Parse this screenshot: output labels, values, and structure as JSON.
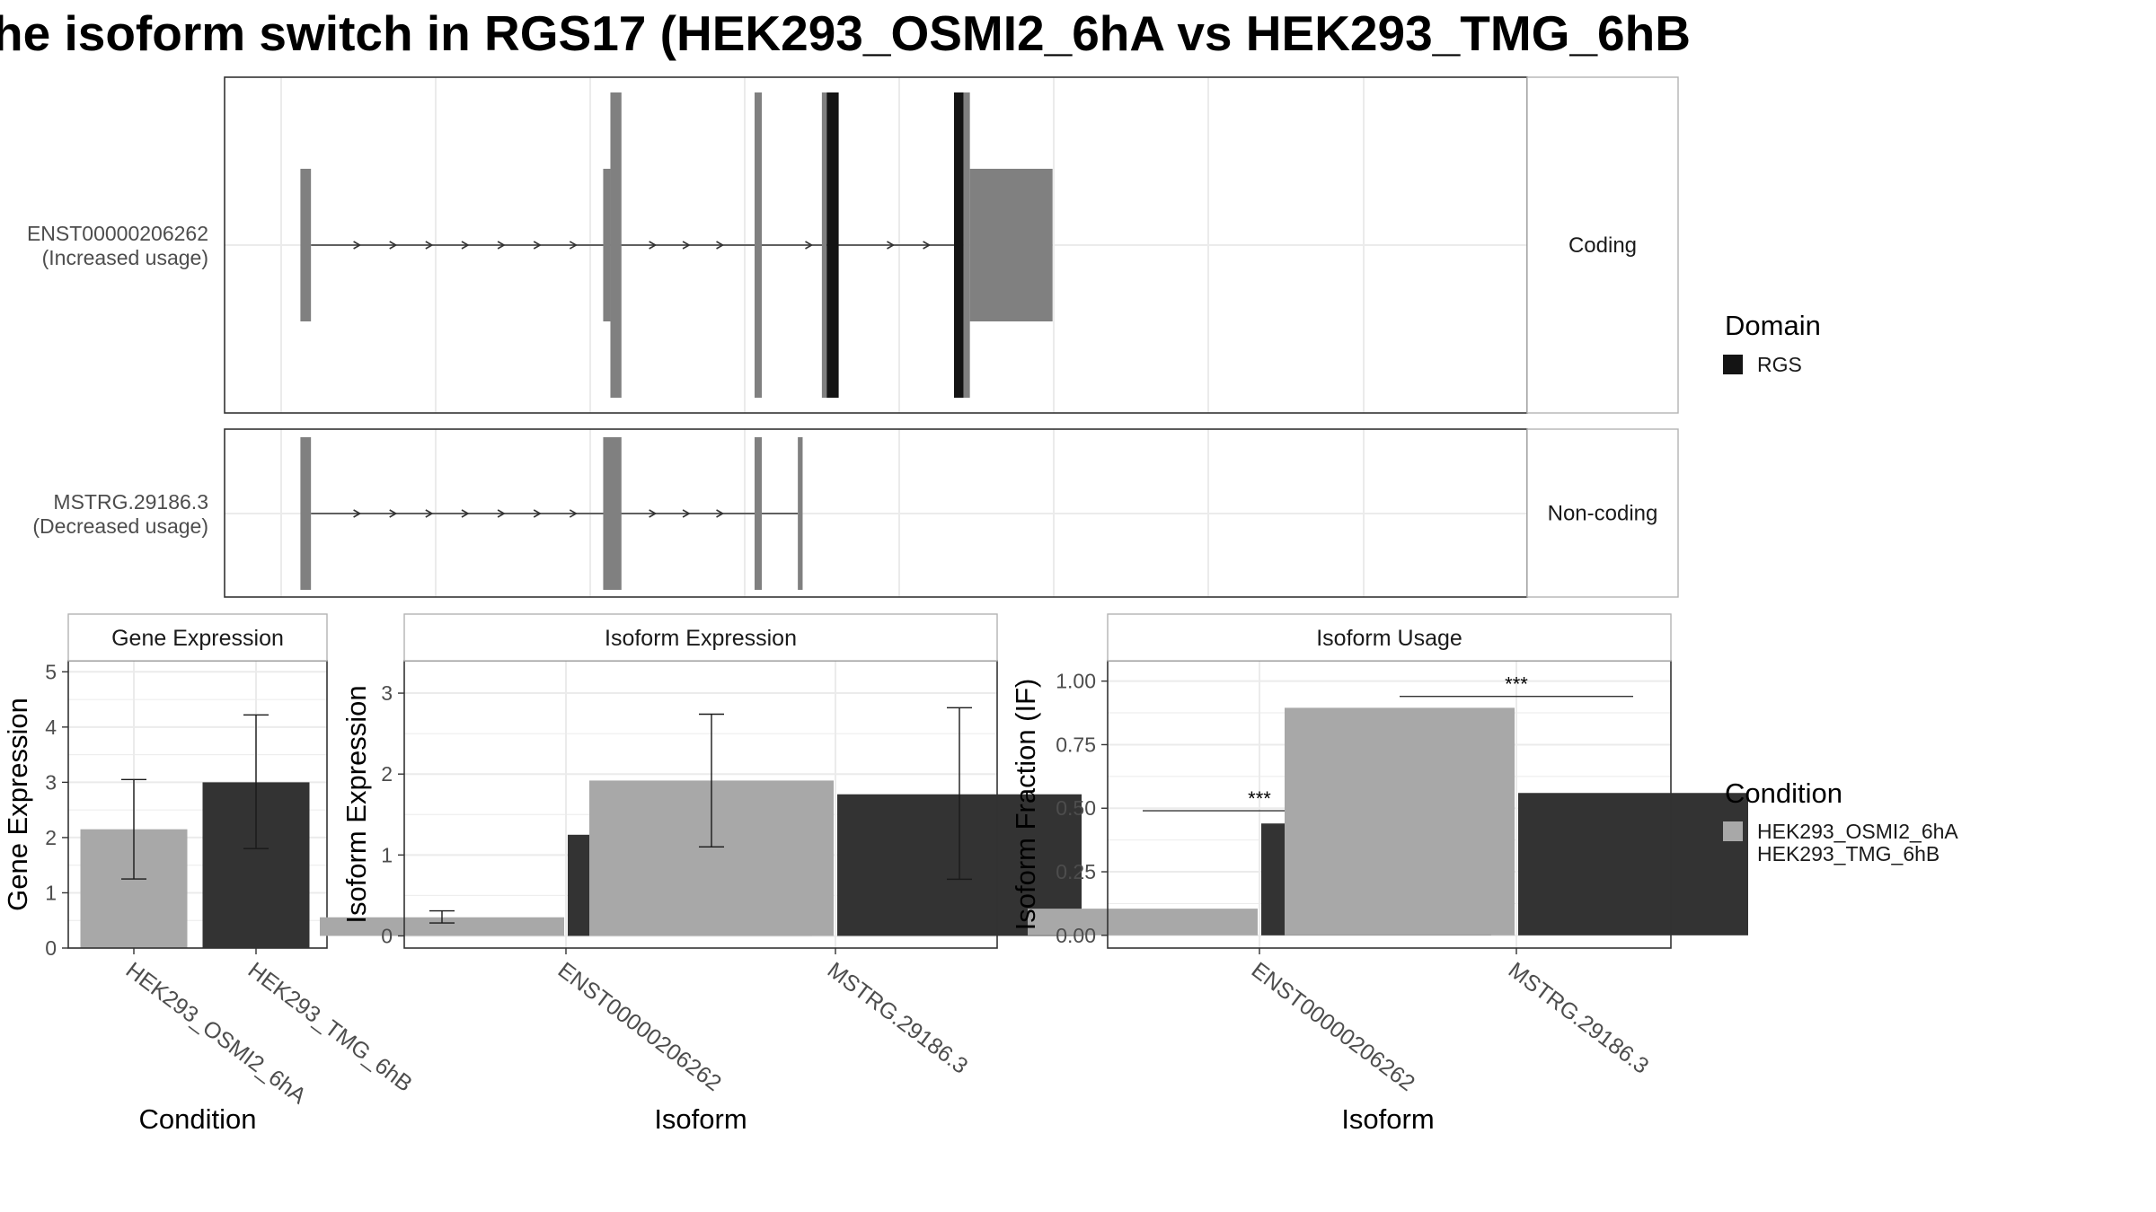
{
  "title": "he isoform switch in RGS17 (HEK293_OSMI2_6hA vs HEK293_TMG_6hB",
  "colors": {
    "exon": "#808080",
    "domain": "#141414",
    "cond_a": "#a8a8a8",
    "cond_b": "#333333",
    "panel_border": "#333333",
    "strip_border": "#b3b3b3",
    "grid": "#ebebeb"
  },
  "transcripts": {
    "coding_strip": "Coding",
    "noncoding_strip": "Non-coding",
    "isoforms": [
      {
        "id": "ENST00000206262",
        "usage": "(Increased usage)",
        "exons": [
          {
            "start": 0.4,
            "end": 0.62,
            "kind": "utr"
          },
          {
            "start": 6.7,
            "end": 6.85,
            "kind": "utr"
          },
          {
            "start": 6.85,
            "end": 7.08,
            "kind": "cds"
          },
          {
            "start": 9.85,
            "end": 10.0,
            "kind": "cds"
          },
          {
            "start": 11.25,
            "end": 11.35,
            "kind": "cds"
          },
          {
            "start": 11.35,
            "end": 11.6,
            "kind": "domain"
          },
          {
            "start": 14.0,
            "end": 14.2,
            "kind": "domain"
          },
          {
            "start": 14.2,
            "end": 14.33,
            "kind": "cds"
          },
          {
            "start": 14.33,
            "end": 16.05,
            "kind": "utr"
          }
        ],
        "intron_start": 0.62,
        "intron_end": 14.0,
        "arrows": [
          1.6,
          2.35,
          3.1,
          3.85,
          4.6,
          5.35,
          6.1,
          7.75,
          8.45,
          9.15,
          11.0,
          12.7,
          13.45
        ]
      },
      {
        "id": "MSTRG.29186.3",
        "usage": "(Decreased usage)",
        "exons": [
          {
            "start": 0.4,
            "end": 0.62,
            "kind": "utr"
          },
          {
            "start": 6.7,
            "end": 7.08,
            "kind": "utr"
          },
          {
            "start": 9.85,
            "end": 10.0,
            "kind": "utr"
          },
          {
            "start": 10.75,
            "end": 10.85,
            "kind": "utr"
          }
        ],
        "intron_start": 0.62,
        "intron_end": 10.75,
        "arrows": [
          1.6,
          2.35,
          3.1,
          3.85,
          4.6,
          5.35,
          6.1,
          7.75,
          8.45,
          9.15
        ]
      }
    ]
  },
  "domain_legend": {
    "title": "Domain",
    "items": [
      "RGS"
    ]
  },
  "condition_legend": {
    "title": "Condition",
    "items": [
      "HEK293_OSMI2_6hA",
      "HEK293_TMG_6hB"
    ]
  },
  "chart_data": [
    {
      "type": "bar",
      "strip": "Gene Expression",
      "categories": [
        "HEK293_OSMI2_6hA",
        "HEK293_TMG_6hB"
      ],
      "values": [
        2.15,
        3.0
      ],
      "error_low": [
        1.25,
        1.8
      ],
      "error_high": [
        3.05,
        4.22
      ],
      "xlabel": "Condition",
      "ylabel": "Gene Expression",
      "ylim": [
        0,
        5.2
      ],
      "yticks": [
        0,
        1,
        2,
        3,
        4,
        5
      ],
      "grid": true
    },
    {
      "type": "bar",
      "strip": "Isoform Expression",
      "categories": [
        "ENST00000206262",
        "MSTRG.29186.3"
      ],
      "series": [
        {
          "name": "HEK293_OSMI2_6hA",
          "values": [
            0.23,
            1.92
          ],
          "error_low": [
            0.16,
            1.1
          ],
          "error_high": [
            0.31,
            2.74
          ]
        },
        {
          "name": "HEK293_TMG_6hB",
          "values": [
            1.25,
            1.75
          ],
          "error_low": [
            1.08,
            0.7
          ],
          "error_high": [
            1.41,
            2.82
          ]
        }
      ],
      "xlabel": "Isoform",
      "ylabel": "Isoform Expression",
      "ylim": [
        -0.15,
        3.4
      ],
      "yticks": [
        0,
        1,
        2,
        3
      ],
      "grid": true
    },
    {
      "type": "bar",
      "strip": "Isoform Usage",
      "categories": [
        "ENST00000206262",
        "MSTRG.29186.3"
      ],
      "series": [
        {
          "name": "HEK293_OSMI2_6hA",
          "values": [
            0.105,
            0.895
          ]
        },
        {
          "name": "HEK293_TMG_6hB",
          "values": [
            0.44,
            0.56
          ]
        }
      ],
      "significance": [
        "***",
        "***"
      ],
      "sig_level": [
        0.49,
        0.94
      ],
      "xlabel": "Isoform",
      "ylabel": "Isoform Fraction (IF)",
      "ylim": [
        -0.05,
        1.08
      ],
      "yticks": [
        0.0,
        0.25,
        0.5,
        0.75,
        1.0
      ],
      "ytick_labels": [
        "0.00",
        "0.25",
        "0.50",
        "0.75",
        "1.00"
      ],
      "grid": true
    }
  ]
}
